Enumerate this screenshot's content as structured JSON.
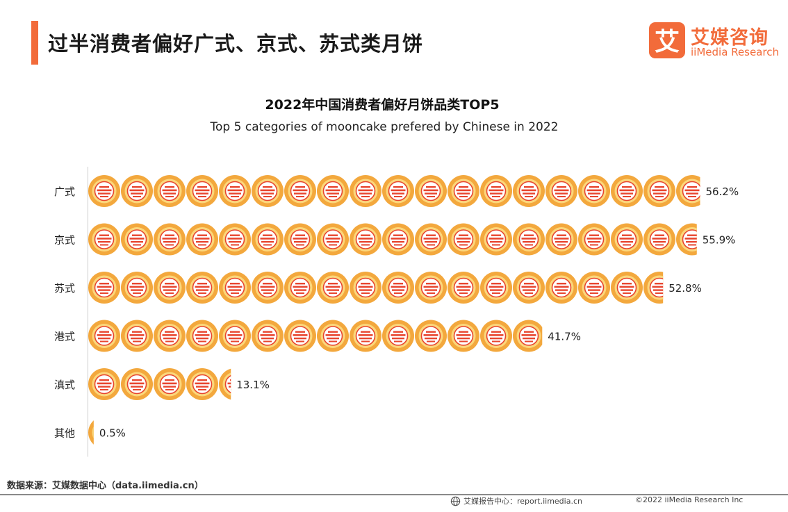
{
  "header": {
    "title": "过半消费者偏好广式、京式、苏式类月饼",
    "logo_cn": "艾媒咨询",
    "logo_en": "iiMedia Research",
    "logo_mark_glyph": "艾"
  },
  "chart_data": {
    "type": "bar",
    "title": "2022年中国消费者偏好月饼品类TOP5",
    "subtitle": "Top 5 categories of mooncake  prefered by Chinese in 2022",
    "categories": [
      "广式",
      "京式",
      "苏式",
      "港式",
      "滇式",
      "其他"
    ],
    "values": [
      56.2,
      55.9,
      52.8,
      41.7,
      13.1,
      0.5
    ],
    "value_labels": [
      "56.2%",
      "55.9%",
      "52.8%",
      "41.7%",
      "13.1%",
      "0.5%"
    ],
    "unit": "%",
    "xlim": [
      0,
      60
    ],
    "grid": false,
    "colors": {
      "icon_ring": "#f3a83d",
      "icon_inner": "#fbd77c",
      "icon_stripe": "#e8452f"
    }
  },
  "footer": {
    "source": "数据来源：艾媒数据中心（data.iimedia.cn）",
    "report": "艾媒报告中心：report.iimedia.cn",
    "copyright": "©2022  iiMedia Research  Inc",
    "report_icon": "globe-icon"
  }
}
